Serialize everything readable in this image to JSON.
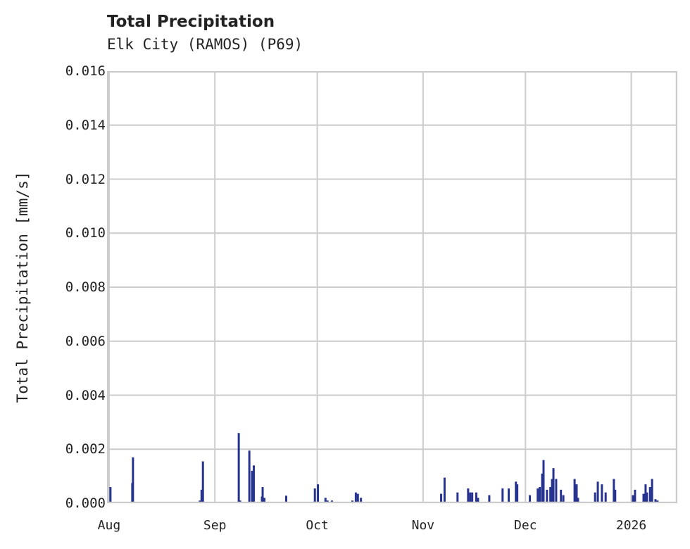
{
  "header": {
    "title": "Total Precipitation",
    "subtitle": "Elk City (RAMOS) (P69)"
  },
  "colors": {
    "bar": "#26338f",
    "grid": "#cccccc",
    "text": "#222222"
  },
  "chart_data": {
    "type": "bar",
    "title": "Total Precipitation",
    "subtitle": "Elk City (RAMOS) (P69)",
    "xlabel": "",
    "ylabel": "Total Precipitation [mm/s]",
    "ylim": [
      0,
      0.016
    ],
    "yticks": [
      "0.000",
      "0.002",
      "0.004",
      "0.006",
      "0.008",
      "0.010",
      "0.012",
      "0.014",
      "0.016"
    ],
    "xticks": [
      "Aug",
      "Sep",
      "Oct",
      "Nov",
      "Dec",
      "2026"
    ],
    "xtick_days": [
      0,
      31,
      61,
      92,
      122,
      153
    ],
    "x_unit": "days since Aug 1",
    "xlim": [
      -0.6,
      166.5
    ],
    "grid": true,
    "legend": null,
    "points": [
      [
        0.4,
        0.0006
      ],
      [
        6.8,
        0.00075
      ],
      [
        7.0,
        0.0017
      ],
      [
        26.6,
        0.0001
      ],
      [
        27.1,
        0.0005
      ],
      [
        27.5,
        0.00155
      ],
      [
        38.0,
        0.0026
      ],
      [
        38.4,
        0.0001
      ],
      [
        41.1,
        0.00195
      ],
      [
        41.9,
        0.0012
      ],
      [
        42.4,
        0.0014
      ],
      [
        44.8,
        0.00025
      ],
      [
        45.0,
        0.0006
      ],
      [
        45.5,
        0.0002
      ],
      [
        51.9,
        0.00028
      ],
      [
        60.3,
        0.00055
      ],
      [
        61.2,
        0.0007
      ],
      [
        63.4,
        0.0002
      ],
      [
        64.0,
        0.0001
      ],
      [
        65.3,
        0.0001
      ],
      [
        71.3,
        0.0001
      ],
      [
        72.3,
        0.0004
      ],
      [
        72.9,
        0.00035
      ],
      [
        73.8,
        0.0002
      ],
      [
        77.9,
        5e-05
      ],
      [
        97.3,
        0.00035
      ],
      [
        98.3,
        0.00095
      ],
      [
        102.1,
        0.0004
      ],
      [
        105.2,
        0.00055
      ],
      [
        105.8,
        0.0004
      ],
      [
        106.4,
        0.0004
      ],
      [
        107.6,
        0.0004
      ],
      [
        108.1,
        0.0002
      ],
      [
        109.3,
        5e-05
      ],
      [
        111.4,
        0.0003
      ],
      [
        115.3,
        0.00055
      ],
      [
        117.1,
        0.00055
      ],
      [
        119.2,
        0.0008
      ],
      [
        119.6,
        0.0007
      ],
      [
        123.3,
        0.0003
      ],
      [
        125.6,
        0.00055
      ],
      [
        126.2,
        0.0006
      ],
      [
        126.9,
        0.0011
      ],
      [
        127.3,
        0.0016
      ],
      [
        128.3,
        0.0005
      ],
      [
        129.3,
        0.0006
      ],
      [
        129.8,
        0.0009
      ],
      [
        130.2,
        0.0013
      ],
      [
        131.0,
        0.0009
      ],
      [
        132.4,
        0.0005
      ],
      [
        133.1,
        0.0003
      ],
      [
        136.4,
        0.0009
      ],
      [
        137.0,
        0.0007
      ],
      [
        137.4,
        0.0002
      ],
      [
        142.4,
        0.0004
      ],
      [
        143.2,
        0.0008
      ],
      [
        144.4,
        0.0007
      ],
      [
        145.5,
        0.0004
      ],
      [
        146.5,
        5e-05
      ],
      [
        147.9,
        0.0009
      ],
      [
        148.3,
        0.0005
      ],
      [
        153.5,
        0.0003
      ],
      [
        154.1,
        0.0005
      ],
      [
        156.6,
        0.00035
      ],
      [
        157.2,
        0.0007
      ],
      [
        157.6,
        0.0004
      ],
      [
        158.5,
        0.0006
      ],
      [
        159.1,
        0.0009
      ],
      [
        160.1,
        0.00015
      ],
      [
        160.7,
        0.0001
      ]
    ]
  }
}
